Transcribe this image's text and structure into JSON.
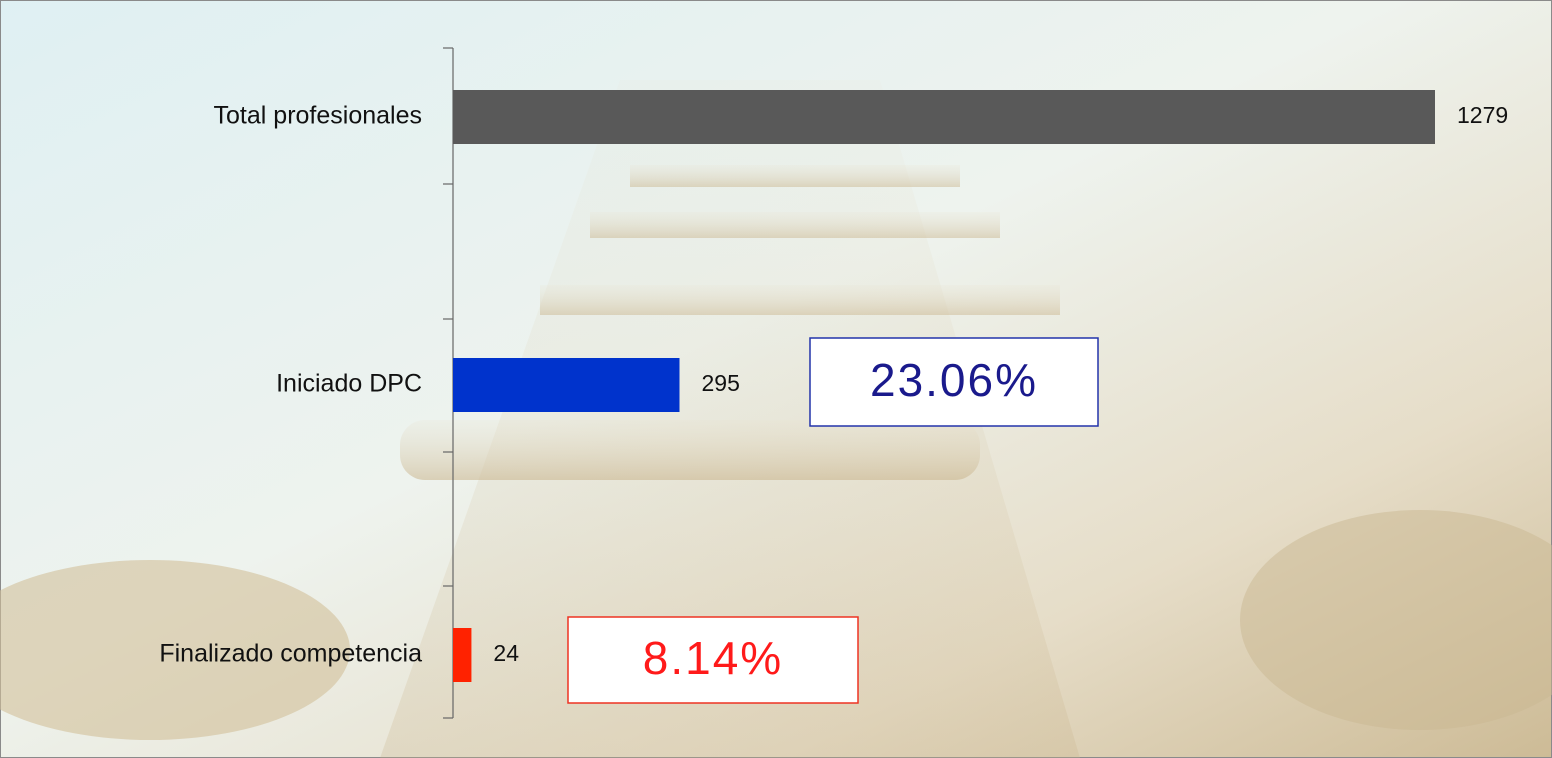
{
  "chart_data": {
    "type": "bar",
    "orientation": "horizontal",
    "categories": [
      "Total profesionales",
      "Iniciado DPC",
      "Finalizado competencia"
    ],
    "values": [
      1279,
      295,
      24
    ],
    "colors": [
      "#595959",
      "#0033cc",
      "#ff2200"
    ],
    "annotations": [
      {
        "text": "23.06%",
        "color": "#1a1a8c",
        "border": "#2233aa"
      },
      {
        "text": "8.14%",
        "color": "#ff1a1a",
        "border": "#ee3322"
      }
    ]
  }
}
